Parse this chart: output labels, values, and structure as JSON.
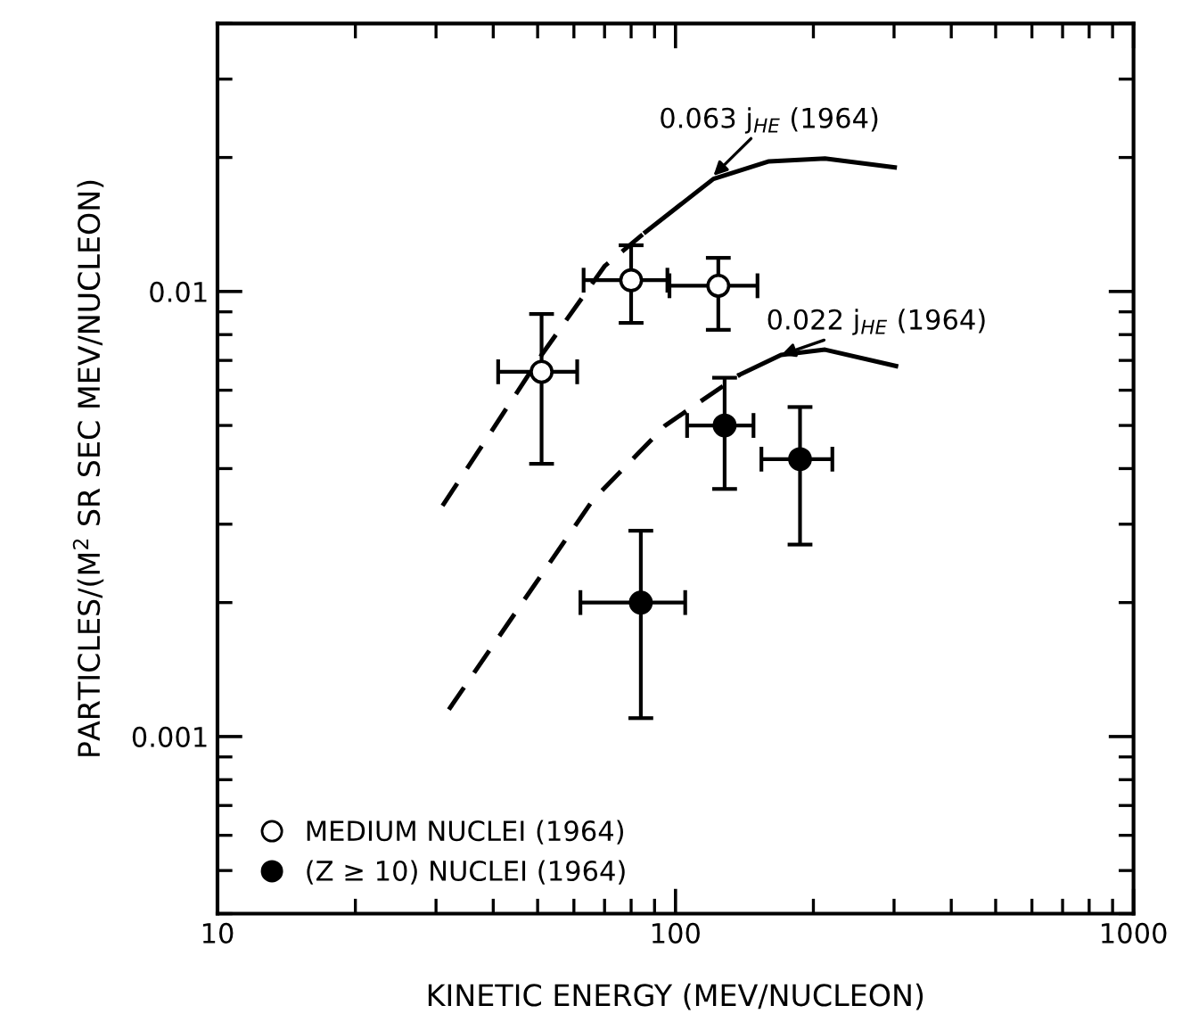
{
  "chart_data": {
    "type": "scatter",
    "xlabel": "KINETIC ENERGY (MEV/NUCLEON)",
    "ylabel": "PARTICLES/(M$^{2}$ SR SEC MEV/NUCLEON)",
    "log": "xy",
    "xlim": [
      10,
      1000
    ],
    "ylim": [
      0.0004,
      0.04
    ],
    "xticks": [
      10,
      100,
      1000
    ],
    "yticks": [
      0.001,
      0.01
    ],
    "grid": false,
    "legend": "bottom left",
    "series": [
      {
        "name": "MEDIUM NUCLEI (1964)",
        "marker": "circle",
        "color": "#ffffff",
        "x": [
          51,
          80,
          124
        ],
        "values": [
          0.0066,
          0.0106,
          0.0103
        ],
        "errors": [
          [
            0.0041,
            0.0089
          ],
          [
            0.0085,
            0.0127
          ],
          [
            0.0082,
            0.0119
          ]
        ],
        "xerrors": [
          [
            41,
            61
          ],
          [
            63,
            96
          ],
          [
            97,
            151
          ]
        ]
      },
      {
        "name": "(Z ≥ 10) NUCLEI (1964)",
        "marker": "circle",
        "color": "#000000",
        "x": [
          128,
          187,
          84
        ],
        "values": [
          0.005,
          0.0042,
          0.002
        ],
        "errors": [
          [
            0.0036,
            0.0064
          ],
          [
            0.0027,
            0.0055
          ],
          [
            0.0011,
            0.0029
          ]
        ],
        "xerrors": [
          [
            106,
            148
          ],
          [
            154,
            220
          ],
          [
            62,
            105
          ]
        ]
      },
      {
        "type": "line",
        "line_style": "dashed",
        "color": "#000000",
        "x": [
          31,
          51,
          70,
          86
        ],
        "values": [
          0.0033,
          0.0072,
          0.0114,
          0.0136
        ]
      },
      {
        "type": "line",
        "line_style": "solid",
        "color": "#000000",
        "x": [
          86,
          121,
          160,
          212,
          301
        ],
        "values": [
          0.0136,
          0.0179,
          0.0196,
          0.0199,
          0.019
        ]
      },
      {
        "type": "line",
        "line_style": "dashed",
        "color": "#000000",
        "x": [
          32,
          66,
          95,
          138
        ],
        "values": [
          0.00115,
          0.0034,
          0.005,
          0.0065
        ]
      },
      {
        "type": "line",
        "line_style": "solid",
        "color": "#000000",
        "x": [
          138,
          170,
          212,
          303
        ],
        "values": [
          0.0065,
          0.0072,
          0.0074,
          0.0068
        ]
      }
    ],
    "annotations": [
      {
        "text": "0.063 j$_{HE}$ (1964)",
        "x": 121,
        "y": 0.0182
      },
      {
        "text": "0.022 j$_{HE}$ (1964)",
        "x": 170,
        "y": 0.0072
      }
    ]
  }
}
